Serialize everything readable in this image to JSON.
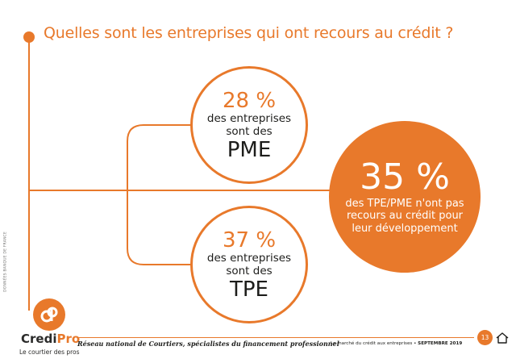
{
  "title": "Quelles sont les entreprises qui ont recours au crédit ?",
  "bubble_pme": {
    "percent": "28 %",
    "line1": "des entreprises",
    "line2": "sont des",
    "category": "PME"
  },
  "bubble_tpe": {
    "percent": "37 %",
    "line1": "des entreprises",
    "line2": "sont des",
    "category": "TPE"
  },
  "bubble_main": {
    "percent": "35 %",
    "line1": "des TPE/PME n'ont pas",
    "line2": "recours au crédit pour",
    "line3": "leur développement"
  },
  "source": "DONNÉES BANQUE DE FRANCE",
  "logo": {
    "name_a": "Credi",
    "name_b": "Pro",
    "tagline": "Le courtier des pros"
  },
  "footer": {
    "tagline": "Réseau national de Courtiers, spécialistes du financement professionnel",
    "document": "Le marché du crédit aux entreprises",
    "separator": " • ",
    "date": "SEPTEMBRE 2019",
    "page": "13"
  },
  "colors": {
    "accent": "#e8792b",
    "text": "#1d1d1b"
  },
  "icons": {
    "home": "home-icon",
    "logo": "credipro-logo-icon"
  }
}
